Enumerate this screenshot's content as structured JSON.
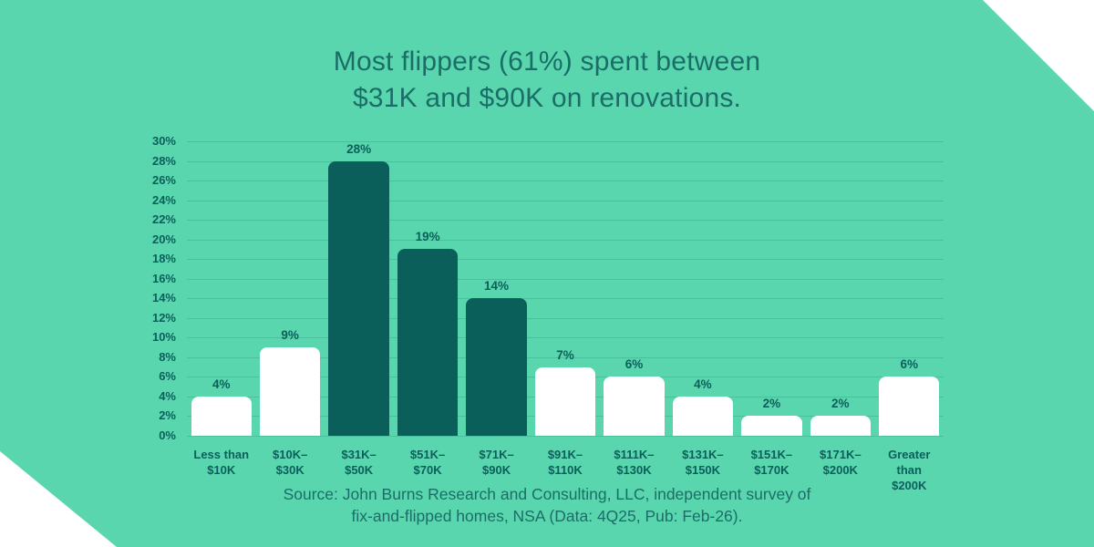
{
  "title": {
    "line1": "Most flippers (61%) spent between",
    "line2": "$31K and $90K on renovations."
  },
  "source": {
    "line1": "Source: John Burns Research and Consulting, LLC, independent survey of",
    "line2": "fix-and-flipped homes, NSA (Data: 4Q25, Pub: Feb-26)."
  },
  "colors": {
    "background": "#59D6AE",
    "bar_default": "#FFFFFF",
    "bar_highlight": "#0B5F5B",
    "axis_text": "#0B5F5B",
    "title_text": "#1B6E67",
    "gridline": "rgba(11,95,92,0.18)"
  },
  "chart_data": {
    "type": "bar",
    "title": "Most flippers (61%) spent between $31K and $90K on renovations.",
    "categories": [
      "Less than\n$10K",
      "$10K–\n$30K",
      "$31K–\n$50K",
      "$51K–\n$70K",
      "$71K–\n$90K",
      "$91K–\n$110K",
      "$111K–\n$130K",
      "$131K–\n$150K",
      "$151K–\n$170K",
      "$171K–\n$200K",
      "Greater than\n$200K"
    ],
    "values": [
      4,
      9,
      28,
      19,
      14,
      7,
      6,
      4,
      2,
      2,
      6
    ],
    "value_suffix": "%",
    "highlighted_indices": [
      2,
      3,
      4
    ],
    "yticks": [
      "0%",
      "2%",
      "4%",
      "6%",
      "8%",
      "10%",
      "12%",
      "14%",
      "16%",
      "18%",
      "20%",
      "22%",
      "24%",
      "26%",
      "28%",
      "30%"
    ],
    "ylim": [
      0,
      30
    ],
    "ytick_step": 2,
    "xlabel": "",
    "ylabel": "",
    "grid": "horizontal",
    "legend": "none"
  }
}
